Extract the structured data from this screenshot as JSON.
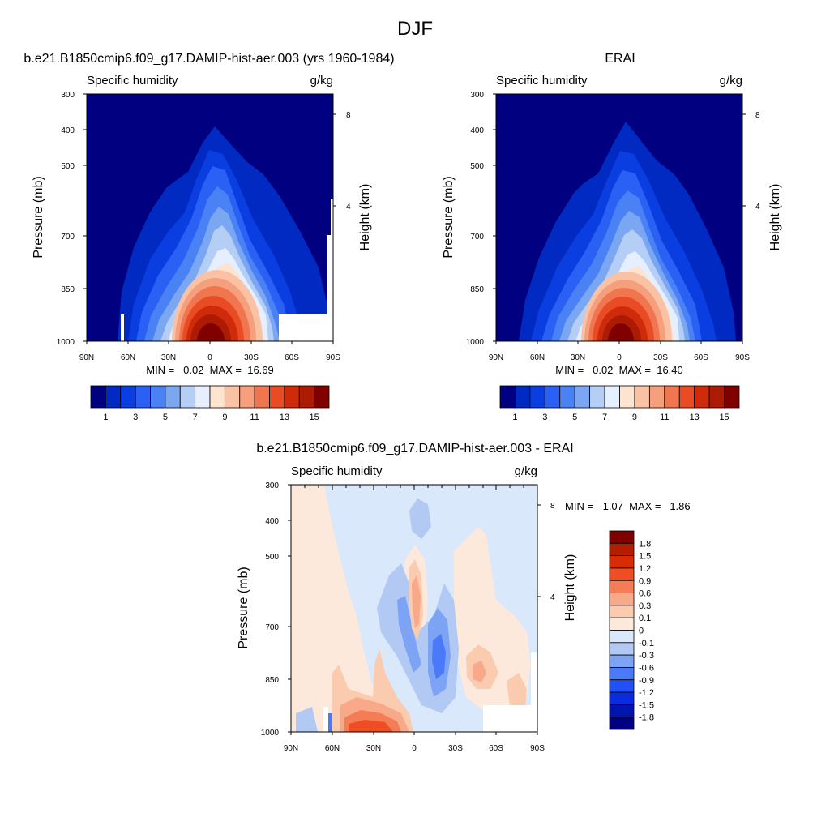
{
  "figure": {
    "title": "DJF"
  },
  "colors": {
    "abs_levels": [
      "#000080",
      "#002ac2",
      "#0a3ee0",
      "#2a60f4",
      "#4a82f6",
      "#7ba6f2",
      "#b5cef6",
      "#e5efff",
      "#fee3cf",
      "#f9c2a4",
      "#f59f7c",
      "#f07650",
      "#e94b25",
      "#cf2b0b",
      "#ac1b04",
      "#800000"
    ],
    "diff_levels": [
      "#000080",
      "#0015b0",
      "#0a2ce0",
      "#2050f8",
      "#4a7af8",
      "#7da4f4",
      "#b2c9f4",
      "#d9e8fb",
      "#fde9dc",
      "#fbcbb0",
      "#f7a98a",
      "#f47d55",
      "#f04e22",
      "#d92b05",
      "#b31e00",
      "#800000"
    ]
  },
  "panels": {
    "model": {
      "title": "b.e21.B1850cmip6.f09_g17.DAMIP-hist-aer.003 (yrs 1960-1984)",
      "left_label": "Specific humidity",
      "right_label": "g/kg",
      "ylabel": "Pressure (mb)",
      "y2label": "Height (km)",
      "stats": "MIN =   0.02  MAX =  16.69"
    },
    "obs": {
      "title": "ERAI",
      "left_label": "Specific humidity",
      "right_label": "g/kg",
      "ylabel": "Pressure (mb)",
      "y2label": "Height (km)",
      "stats": "MIN =   0.02  MAX =  16.40"
    },
    "diff": {
      "title": "b.e21.B1850cmip6.f09_g17.DAMIP-hist-aer.003 - ERAI",
      "left_label": "Specific humidity",
      "right_label": "g/kg",
      "ylabel": "Pressure (mb)",
      "y2label": "Height (km)",
      "stats": "MIN =  -1.07  MAX =   1.86"
    }
  },
  "chart_data": [
    {
      "type": "heatmap",
      "title": "b.e21.B1850cmip6.f09_g17.DAMIP-hist-aer.003 (yrs 1960-1984)",
      "xlabel": "",
      "ylabel": "Pressure (mb)",
      "y2label": "Height (km)",
      "x_ticks": [
        "90N",
        "60N",
        "30N",
        "0",
        "30S",
        "60S",
        "90S"
      ],
      "y_ticks": [
        "300",
        "400",
        "500",
        "700",
        "850",
        "1000"
      ],
      "y2_ticks": [
        "8",
        "4"
      ],
      "xlim": [
        90,
        -90
      ],
      "ylim": [
        1000,
        300
      ],
      "units": "g/kg",
      "variable": "Specific humidity",
      "min": 0.02,
      "max": 16.69,
      "colorbar_ticks": [
        "1",
        "3",
        "5",
        "7",
        "9",
        "11",
        "13",
        "15"
      ],
      "levels": [
        1,
        2,
        3,
        4,
        5,
        6,
        7,
        8,
        9,
        10,
        11,
        12,
        13,
        14,
        15
      ]
    },
    {
      "type": "heatmap",
      "title": "ERAI",
      "xlabel": "",
      "ylabel": "Pressure (mb)",
      "y2label": "Height (km)",
      "x_ticks": [
        "90N",
        "60N",
        "30N",
        "0",
        "30S",
        "60S",
        "90S"
      ],
      "y_ticks": [
        "300",
        "400",
        "500",
        "700",
        "850",
        "1000"
      ],
      "y2_ticks": [
        "8",
        "4"
      ],
      "xlim": [
        90,
        -90
      ],
      "ylim": [
        1000,
        300
      ],
      "units": "g/kg",
      "variable": "Specific humidity",
      "min": 0.02,
      "max": 16.4,
      "colorbar_ticks": [
        "1",
        "3",
        "5",
        "7",
        "9",
        "11",
        "13",
        "15"
      ],
      "levels": [
        1,
        2,
        3,
        4,
        5,
        6,
        7,
        8,
        9,
        10,
        11,
        12,
        13,
        14,
        15
      ]
    },
    {
      "type": "heatmap",
      "title": "b.e21.B1850cmip6.f09_g17.DAMIP-hist-aer.003 - ERAI",
      "xlabel": "",
      "ylabel": "Pressure (mb)",
      "y2label": "Height (km)",
      "x_ticks": [
        "90N",
        "60N",
        "30N",
        "0",
        "30S",
        "60S",
        "90S"
      ],
      "y_ticks": [
        "300",
        "400",
        "500",
        "700",
        "850",
        "1000"
      ],
      "y2_ticks": [
        "8",
        "4"
      ],
      "xlim": [
        90,
        -90
      ],
      "ylim": [
        1000,
        300
      ],
      "units": "g/kg",
      "variable": "Specific humidity",
      "min": -1.07,
      "max": 1.86,
      "colorbar_labels": [
        "1.8",
        "1.5",
        "1.2",
        "0.9",
        "0.6",
        "0.3",
        "0.1",
        "0",
        "-0.1",
        "-0.3",
        "-0.6",
        "-0.9",
        "-1.2",
        "-1.5",
        "-1.8"
      ]
    }
  ]
}
